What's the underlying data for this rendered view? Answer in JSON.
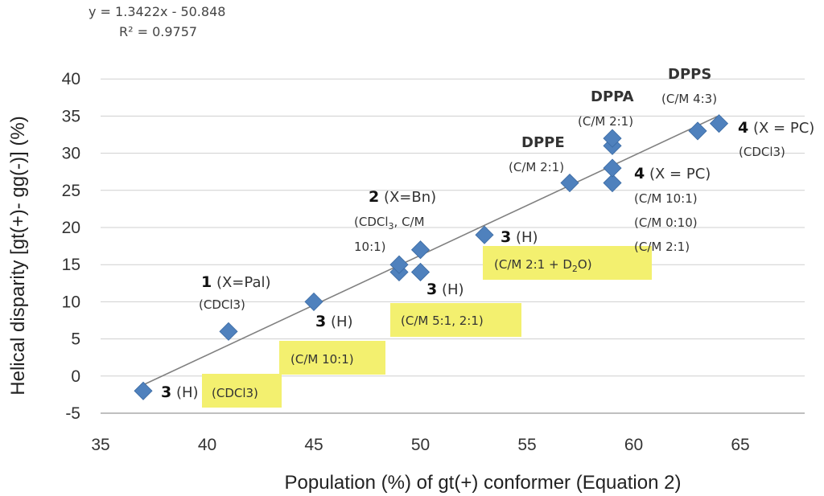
{
  "chart_data": {
    "type": "scatter",
    "title": "",
    "xlabel": "Population (%) of gt(+) conformer (Equation 2)",
    "ylabel": "Helical disparity [gt(+)- gg(-)] (%)",
    "xlim": [
      35,
      67
    ],
    "ylim": [
      -5,
      40
    ],
    "xticks": [
      "35",
      "40",
      "45",
      "50",
      "55",
      "60",
      "65"
    ],
    "yticks": [
      "-5",
      "0",
      "5",
      "10",
      "15",
      "20",
      "25",
      "30",
      "35",
      "40"
    ],
    "grid": "horizontal",
    "marker_color": "#4f81bd",
    "trendline": {
      "slope": 1.3422,
      "intercept": -50.848,
      "x_range": [
        37,
        64
      ],
      "equation": "y = 1.3422x - 50.848",
      "r2": "R² = 0.9757"
    },
    "points": [
      {
        "x": 37,
        "y": -2
      },
      {
        "x": 41,
        "y": 6
      },
      {
        "x": 45,
        "y": 10
      },
      {
        "x": 49,
        "y": 14
      },
      {
        "x": 49,
        "y": 15
      },
      {
        "x": 50,
        "y": 14
      },
      {
        "x": 50,
        "y": 17
      },
      {
        "x": 53,
        "y": 19
      },
      {
        "x": 57,
        "y": 26
      },
      {
        "x": 59,
        "y": 26
      },
      {
        "x": 59,
        "y": 28
      },
      {
        "x": 59,
        "y": 31
      },
      {
        "x": 59,
        "y": 32
      },
      {
        "x": 63,
        "y": 33
      },
      {
        "x": 64,
        "y": 34
      }
    ],
    "annotations": {
      "c1": {
        "num": "1",
        "label": " (X=Pal)",
        "sub": "(CDCl3)"
      },
      "c2": {
        "num": "2",
        "label": " (X=Bn)",
        "sub1": "(CDCl",
        "sub2": "3",
        "sub3": ", C/M",
        "sub4": "10:1)"
      },
      "h_cdcl3": {
        "num": "3",
        "label": " (H)",
        "sub": "(CDCl3)"
      },
      "h_cm10": {
        "num": "3",
        "label": " (H)",
        "sub": "(C/M 10:1)"
      },
      "h_cm5": {
        "num": "3",
        "label": " (H)",
        "sub": "(C/M 5:1, 2:1)"
      },
      "h_d2o": {
        "num": "3",
        "label": " (H)",
        "sub1": "(C/M 2:1 + D",
        "sub2": "2",
        "sub3": "O)"
      },
      "dppe": {
        "name": "DPPE",
        "sub": "(C/M 2:1)"
      },
      "dppa": {
        "name": "DPPA",
        "sub": "(C/M 2:1)"
      },
      "dpps": {
        "name": "DPPS",
        "sub": "(C/M 4:3)"
      },
      "pc_mix": {
        "num": "4",
        "label": " (X = PC)",
        "sub1": "(C/M 10:1)",
        "sub2": "(C/M 0:10)",
        "sub3": "(C/M 2:1)"
      },
      "pc_cdcl3": {
        "num": "4",
        "label": " (X = PC)",
        "sub": "(CDCl3)"
      }
    }
  }
}
